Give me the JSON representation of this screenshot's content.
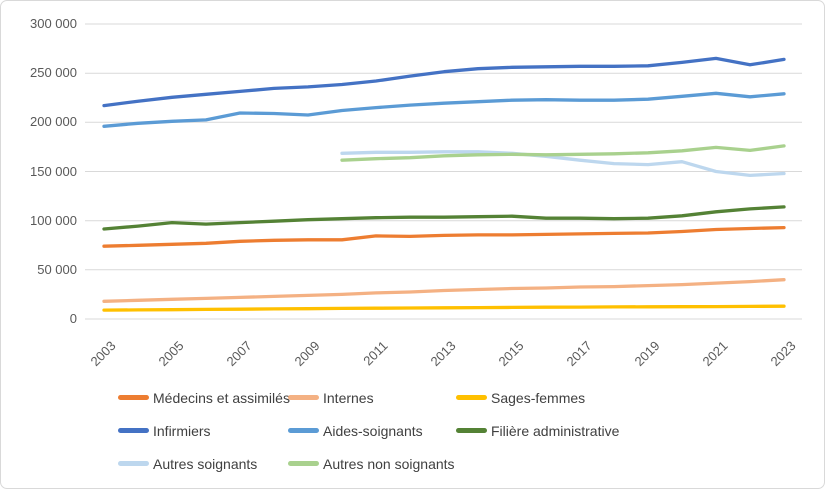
{
  "styles": {
    "grid_color": "#D9D9D9",
    "frame_border_color": "#D9D9D9",
    "axis_text_color": "#595959",
    "legend_text_color": "#404040",
    "background": "#FFFFFF"
  },
  "chart_data": {
    "type": "line",
    "title": "",
    "xlabel": "",
    "ylabel": "",
    "grid": true,
    "legend_position": "bottom",
    "ylim": [
      0,
      300000
    ],
    "ytick_values": [
      300000,
      250000,
      200000,
      150000,
      100000,
      50000,
      0
    ],
    "ytick_labels": [
      "300 000",
      "250 000",
      "200 000",
      "150 000",
      "100 000",
      "50 000",
      "0"
    ],
    "xtick_labels": [
      "2003",
      "2005",
      "2007",
      "2009",
      "2011",
      "2013",
      "2015",
      "2017",
      "2019",
      "2021",
      "2023"
    ],
    "x": [
      2003,
      2004,
      2005,
      2006,
      2007,
      2008,
      2009,
      2010,
      2011,
      2012,
      2013,
      2014,
      2015,
      2016,
      2017,
      2018,
      2019,
      2020,
      2021,
      2022,
      2023
    ],
    "series": [
      {
        "name": "Médecins et assimilés",
        "color": "#ED7D31",
        "values": [
          74000,
          75000,
          76000,
          77000,
          79000,
          80000,
          80500,
          80500,
          84500,
          84000,
          85000,
          85500,
          85500,
          86000,
          86500,
          87000,
          87500,
          89000,
          91000,
          92000,
          93000
        ]
      },
      {
        "name": "Internes",
        "color": "#F4B183",
        "values": [
          18000,
          19000,
          20000,
          21000,
          22000,
          23000,
          24000,
          25000,
          26500,
          27500,
          29000,
          30000,
          31000,
          31500,
          32500,
          33000,
          34000,
          35000,
          36500,
          38000,
          40000
        ]
      },
      {
        "name": "Sages-femmes",
        "color": "#FFC000",
        "values": [
          9000,
          9300,
          9500,
          9800,
          10000,
          10300,
          10500,
          10800,
          11000,
          11200,
          11400,
          11600,
          11800,
          12000,
          12100,
          12300,
          12400,
          12500,
          12600,
          12800,
          13000
        ]
      },
      {
        "name": "Infirmiers",
        "color": "#4472C4",
        "values": [
          217000,
          221500,
          225500,
          228500,
          231500,
          234500,
          236000,
          238500,
          242000,
          247000,
          251500,
          254500,
          256000,
          256500,
          257000,
          257000,
          257500,
          261000,
          265000,
          258500,
          264000
        ]
      },
      {
        "name": "Aides-soignants",
        "color": "#5B9BD5",
        "values": [
          196000,
          199000,
          201000,
          202500,
          209500,
          209000,
          207500,
          212000,
          215000,
          217500,
          219500,
          221000,
          222500,
          223000,
          222500,
          222500,
          223500,
          226500,
          229500,
          226000,
          229000
        ]
      },
      {
        "name": "Filière administrative",
        "color": "#548235",
        "values": [
          91500,
          94500,
          98000,
          96500,
          98000,
          99500,
          101000,
          102000,
          103000,
          103500,
          103500,
          104000,
          104500,
          102500,
          102500,
          102000,
          102500,
          105000,
          109000,
          112000,
          114000
        ]
      },
      {
        "name": "Autres soignants",
        "color": "#BDD7EE",
        "values": [
          null,
          null,
          null,
          null,
          null,
          null,
          null,
          168500,
          169500,
          169500,
          170000,
          170000,
          168500,
          165500,
          161500,
          158000,
          157000,
          160000,
          150000,
          146000,
          148000
        ]
      },
      {
        "name": "Autres non soignants",
        "color": "#A9D18E",
        "values": [
          null,
          null,
          null,
          null,
          null,
          null,
          null,
          161500,
          163000,
          164000,
          166000,
          167000,
          167500,
          167000,
          167500,
          168000,
          169000,
          171000,
          174500,
          171500,
          176000
        ]
      }
    ]
  }
}
